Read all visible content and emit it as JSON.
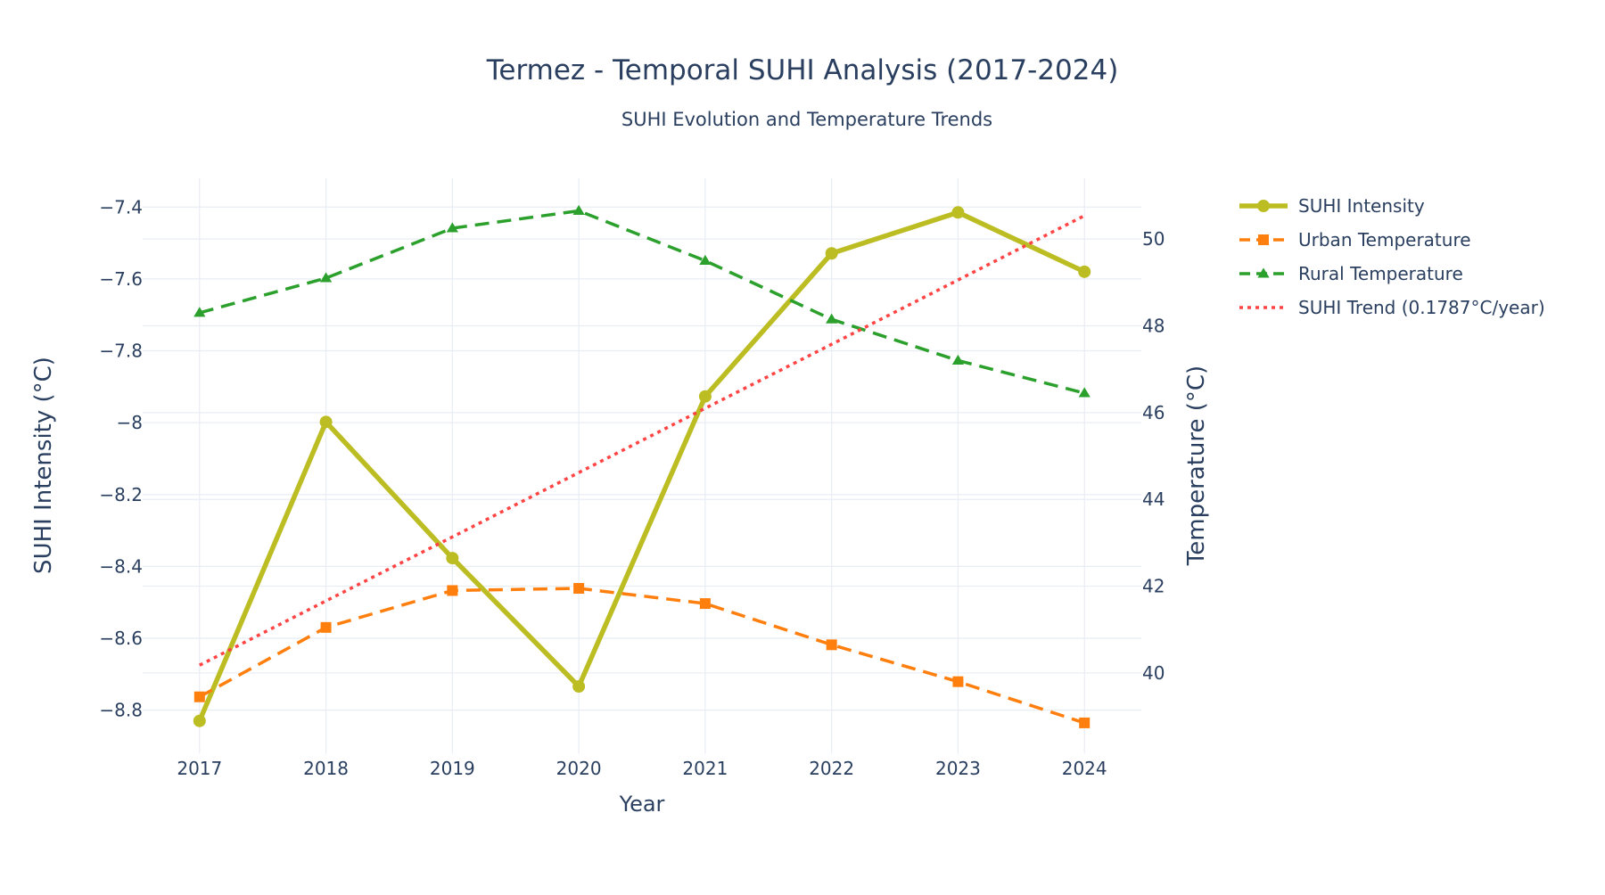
{
  "chart_data": {
    "type": "line",
    "title": "Termez - Temporal SUHI Analysis (2017-2024)",
    "subtitle": "SUHI Evolution and Temperature Trends",
    "xlabel": "Year",
    "ylabel": "SUHI Intensity (°C)",
    "y2label": "Temperature (°C)",
    "x": [
      2017,
      2018,
      2019,
      2020,
      2021,
      2022,
      2023,
      2024
    ],
    "x_tick_labels": [
      "2017",
      "2018",
      "2019",
      "2020",
      "2021",
      "2022",
      "2023",
      "2024"
    ],
    "xlim": [
      2016.55,
      2024.45
    ],
    "ylim": [
      -8.92,
      -7.32
    ],
    "y_ticks": [
      -8.8,
      -8.6,
      -8.4,
      -8.2,
      -8.0,
      -7.8,
      -7.6,
      -7.4
    ],
    "y_tick_labels": [
      "−8.8",
      "−8.6",
      "−8.4",
      "−8.2",
      "−8",
      "−7.8",
      "−7.6",
      "−7.4"
    ],
    "y2lim": [
      38.15,
      51.4
    ],
    "y2_ticks": [
      40,
      42,
      44,
      46,
      48,
      50
    ],
    "y2_tick_labels": [
      "40",
      "42",
      "44",
      "46",
      "48",
      "50"
    ],
    "grid": true,
    "legend_position": "top-right-outside",
    "series": [
      {
        "name": "SUHI Intensity",
        "axis": "y",
        "values": [
          -8.83,
          -7.998,
          -8.377,
          -8.734,
          -7.927,
          -7.529,
          -7.415,
          -7.58
        ],
        "color": "#bcbd22",
        "dash": "solid",
        "marker": "circle"
      },
      {
        "name": "Urban Temperature",
        "axis": "y2",
        "values": [
          39.45,
          41.05,
          41.9,
          41.95,
          41.6,
          40.65,
          39.8,
          38.85
        ],
        "color": "#ff7f0e",
        "dash": "dash",
        "marker": "square"
      },
      {
        "name": "Rural Temperature",
        "axis": "y2",
        "values": [
          48.3,
          49.1,
          50.25,
          50.65,
          49.5,
          48.15,
          47.2,
          46.45
        ],
        "color": "#2ca02c",
        "dash": "dash",
        "marker": "triangle-up"
      },
      {
        "name": "SUHI Trend (0.1787°C/year)",
        "axis": "y",
        "values": [
          -8.675,
          -8.496,
          -8.318,
          -8.139,
          -7.96,
          -7.782,
          -7.603,
          -7.424
        ],
        "color": "#ff4444",
        "dash": "dot",
        "marker": "none"
      }
    ]
  }
}
